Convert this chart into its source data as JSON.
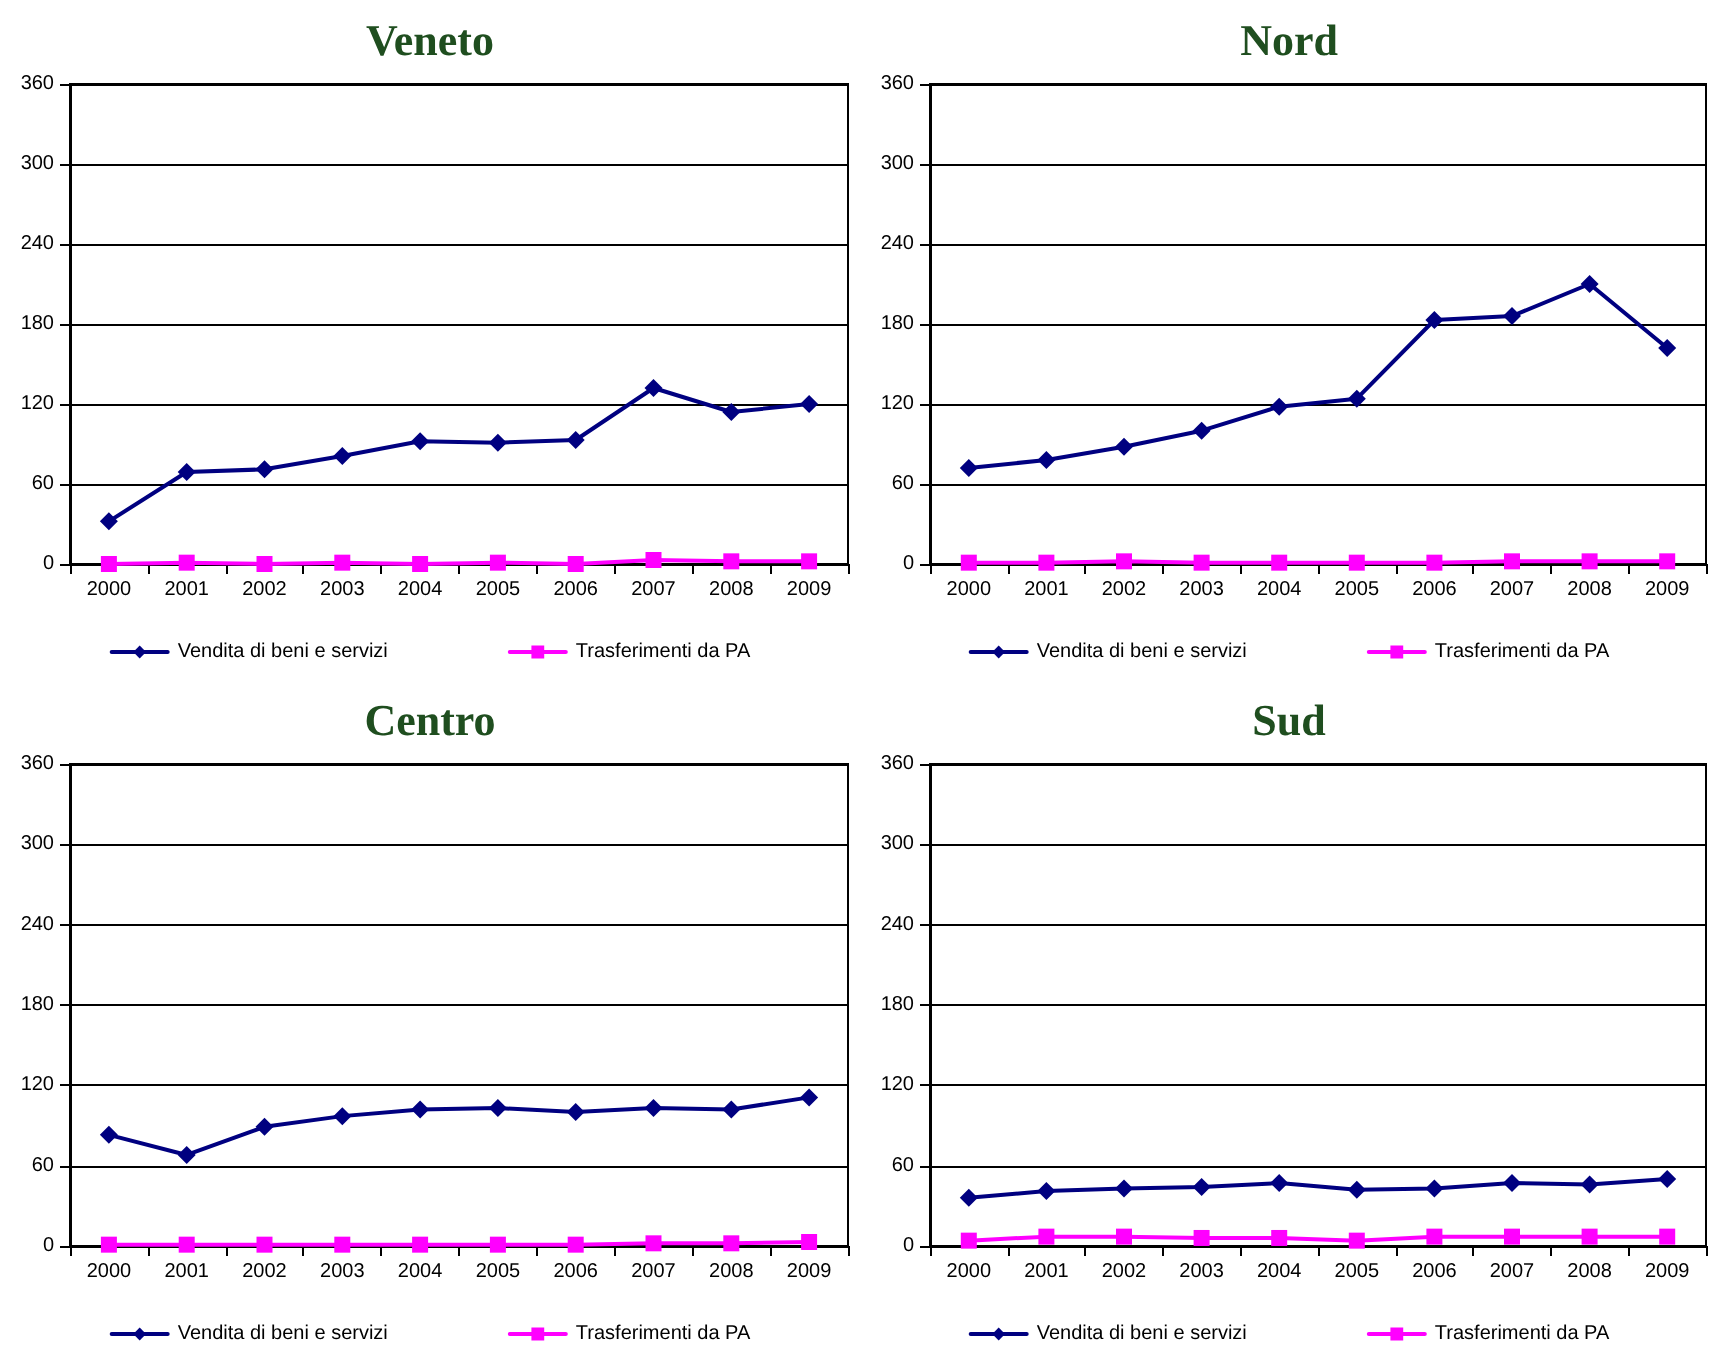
{
  "chart_data": [
    {
      "type": "line",
      "title": "Veneto",
      "categories": [
        "2000",
        "2001",
        "2002",
        "2003",
        "2004",
        "2005",
        "2006",
        "2007",
        "2008",
        "2009"
      ],
      "ylim": [
        0,
        360
      ],
      "yticks": [
        0,
        60,
        120,
        180,
        240,
        300,
        360
      ],
      "grid": "y",
      "legend": "bottom",
      "series": [
        {
          "name": "Vendita di beni e servizi",
          "color": "#000080",
          "marker": "diamond",
          "values": [
            32,
            69,
            71,
            81,
            92,
            91,
            93,
            132,
            114,
            120
          ]
        },
        {
          "name": "Trasferimenti da PA",
          "color": "#ff00ff",
          "marker": "square",
          "values": [
            0,
            1,
            0,
            1,
            0,
            1,
            0,
            3,
            2,
            2
          ]
        }
      ]
    },
    {
      "type": "line",
      "title": "Nord",
      "categories": [
        "2000",
        "2001",
        "2002",
        "2003",
        "2004",
        "2005",
        "2006",
        "2007",
        "2008",
        "2009"
      ],
      "ylim": [
        0,
        360
      ],
      "yticks": [
        0,
        60,
        120,
        180,
        240,
        300,
        360
      ],
      "grid": "y",
      "legend": "bottom",
      "series": [
        {
          "name": "Vendita di beni e servizi",
          "color": "#000080",
          "marker": "diamond",
          "values": [
            72,
            78,
            88,
            100,
            118,
            124,
            183,
            186,
            210,
            162
          ]
        },
        {
          "name": "Trasferimenti da PA",
          "color": "#ff00ff",
          "marker": "square",
          "values": [
            1,
            1,
            2,
            1,
            1,
            1,
            1,
            2,
            2,
            2
          ]
        }
      ]
    },
    {
      "type": "line",
      "title": "Centro",
      "categories": [
        "2000",
        "2001",
        "2002",
        "2003",
        "2004",
        "2005",
        "2006",
        "2007",
        "2008",
        "2009"
      ],
      "ylim": [
        0,
        360
      ],
      "yticks": [
        0,
        60,
        120,
        180,
        240,
        300,
        360
      ],
      "grid": "y",
      "legend": "bottom",
      "series": [
        {
          "name": "Vendita di beni e servizi",
          "color": "#000080",
          "marker": "diamond",
          "values": [
            83,
            68,
            89,
            97,
            102,
            103,
            100,
            103,
            102,
            111
          ]
        },
        {
          "name": "Trasferimenti da PA",
          "color": "#ff00ff",
          "marker": "square",
          "values": [
            1,
            1,
            1,
            1,
            1,
            1,
            1,
            2,
            2,
            3
          ]
        }
      ]
    },
    {
      "type": "line",
      "title": "Sud",
      "categories": [
        "2000",
        "2001",
        "2002",
        "2003",
        "2004",
        "2005",
        "2006",
        "2007",
        "2008",
        "2009"
      ],
      "ylim": [
        0,
        360
      ],
      "yticks": [
        0,
        60,
        120,
        180,
        240,
        300,
        360
      ],
      "grid": "y",
      "legend": "bottom",
      "series": [
        {
          "name": "Vendita di beni e servizi",
          "color": "#000080",
          "marker": "diamond",
          "values": [
            36,
            41,
            43,
            44,
            47,
            42,
            43,
            47,
            46,
            50
          ]
        },
        {
          "name": "Trasferimenti da PA",
          "color": "#ff00ff",
          "marker": "square",
          "values": [
            4,
            7,
            7,
            6,
            6,
            4,
            7,
            7,
            7,
            7
          ]
        }
      ]
    }
  ]
}
